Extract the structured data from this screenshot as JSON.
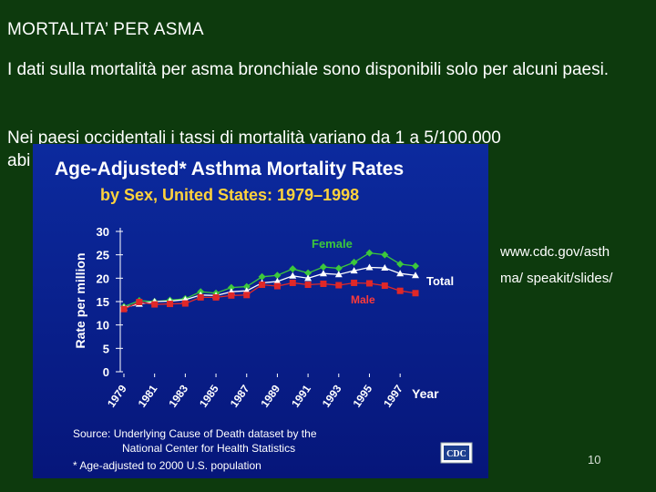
{
  "slide": {
    "title": "MORTALITA’ PER ASMA",
    "paragraph1": "I dati sulla mortalità per asma bronchiale sono disponibili solo per alcuni paesi.",
    "paragraph2_line1": "Nei paesi occidentali i tassi di mortalità variano da 1 a 5/100.000",
    "paragraph2_line2": "abi",
    "url_line1": "www.cdc.gov/asth",
    "url_line2": "ma/ speakit/slides/",
    "page_number": "10"
  },
  "chart_data": {
    "type": "line",
    "title": "Age-Adjusted* Asthma Mortality Rates",
    "subtitle": "by Sex, United States: 1979–1998",
    "xlabel": "Year",
    "ylabel": "Rate per million",
    "ylim": [
      0,
      30
    ],
    "yticks": [
      0,
      5,
      10,
      15,
      20,
      25,
      30
    ],
    "xticks": [
      1979,
      1981,
      1983,
      1985,
      1987,
      1989,
      1991,
      1993,
      1995,
      1997
    ],
    "x": [
      1979,
      1980,
      1981,
      1982,
      1983,
      1984,
      1985,
      1986,
      1987,
      1988,
      1989,
      1990,
      1991,
      1992,
      1993,
      1994,
      1995,
      1996,
      1997,
      1998
    ],
    "series": [
      {
        "name": "Female",
        "color": "#3cc83c",
        "marker": "diamond",
        "values": [
          13.9,
          15.2,
          15.0,
          15.3,
          15.6,
          17.1,
          16.8,
          18.0,
          18.2,
          20.3,
          20.6,
          22.0,
          21.1,
          22.4,
          22.1,
          23.4,
          25.4,
          25.0,
          23.0,
          22.6
        ]
      },
      {
        "name": "Total",
        "color": "#ffffff",
        "marker": "triangle",
        "values": [
          13.7,
          14.5,
          15.0,
          15.1,
          15.4,
          16.4,
          16.3,
          17.1,
          17.3,
          19.0,
          19.3,
          20.5,
          20.0,
          21.0,
          20.8,
          21.6,
          22.3,
          22.2,
          21.0,
          20.6
        ]
      },
      {
        "name": "Male",
        "color": "#e02828",
        "marker": "square",
        "values": [
          13.4,
          14.9,
          14.4,
          14.5,
          14.6,
          15.9,
          15.9,
          16.3,
          16.4,
          18.6,
          18.3,
          19.0,
          18.6,
          18.8,
          18.5,
          19.0,
          18.9,
          18.4,
          17.3,
          16.8
        ]
      }
    ],
    "source_line1": "Source: Underlying Cause of Death dataset by the",
    "source_line2": "National Center for Health Statistics",
    "footnote": "* Age-adjusted to 2000 U.S. population",
    "logo_text": "CDC",
    "grid": false,
    "legend": "inline labels"
  },
  "colors": {
    "background": "#0d3a0d",
    "chart_panel": "#0a2490",
    "chart_title": "#ffffff",
    "chart_subtitle": "#ffd23c"
  }
}
